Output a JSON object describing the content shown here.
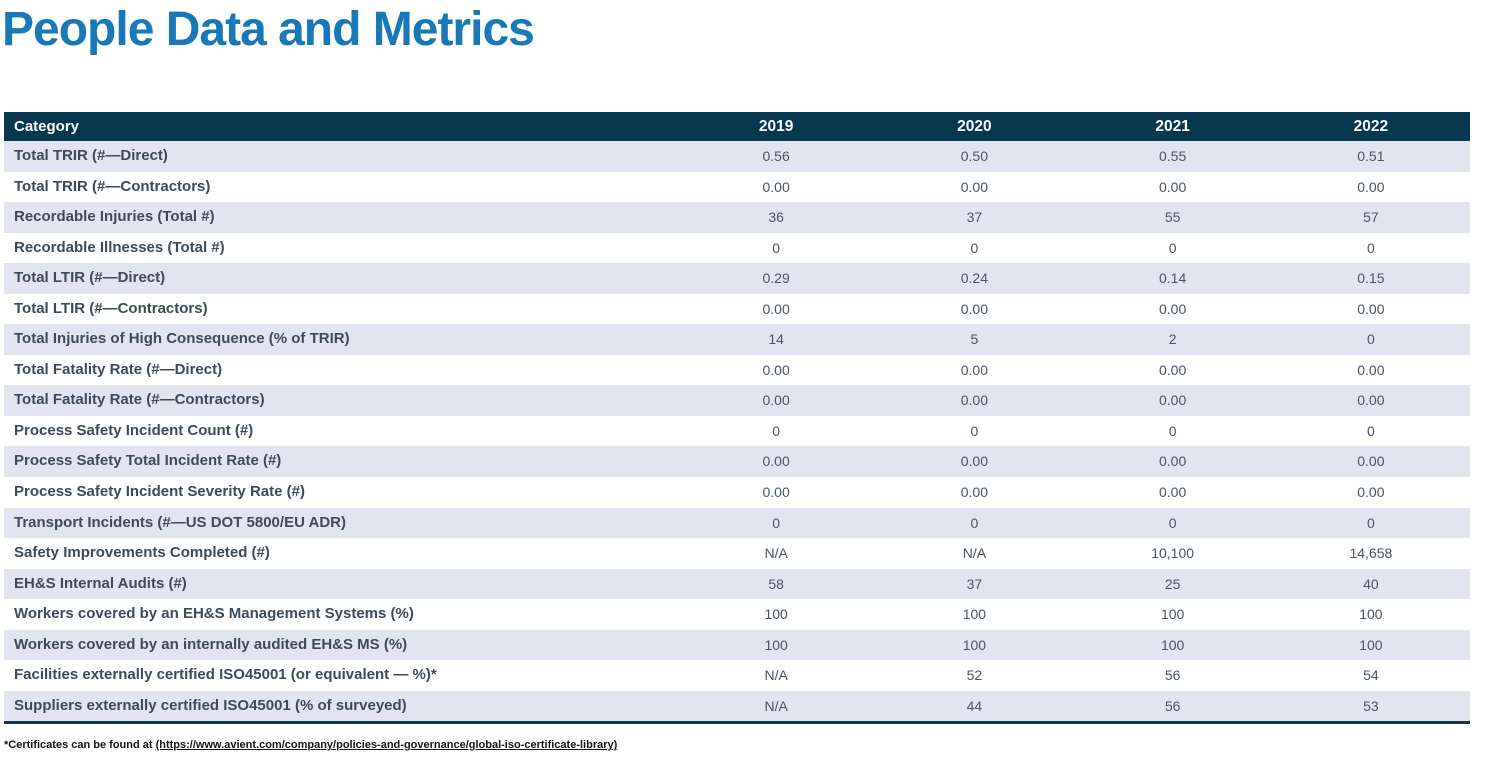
{
  "title": "People Data and Metrics",
  "table": {
    "columns": [
      "Category",
      "2019",
      "2020",
      "2021",
      "2022"
    ],
    "rows": [
      {
        "label": "Total TRIR (#—Direct)",
        "values": [
          "0.56",
          "0.50",
          "0.55",
          "0.51"
        ]
      },
      {
        "label": "Total TRIR (#—Contractors)",
        "values": [
          "0.00",
          "0.00",
          "0.00",
          "0.00"
        ]
      },
      {
        "label": "Recordable Injuries (Total #)",
        "values": [
          "36",
          "37",
          "55",
          "57"
        ]
      },
      {
        "label": "Recordable Illnesses (Total #)",
        "values": [
          "0",
          "0",
          "0",
          "0"
        ]
      },
      {
        "label": "Total LTIR (#—Direct)",
        "values": [
          "0.29",
          "0.24",
          "0.14",
          "0.15"
        ]
      },
      {
        "label": "Total LTIR (#—Contractors)",
        "values": [
          "0.00",
          "0.00",
          "0.00",
          "0.00"
        ]
      },
      {
        "label": "Total Injuries of High Consequence (% of TRIR)",
        "values": [
          "14",
          "5",
          "2",
          "0"
        ]
      },
      {
        "label": "Total Fatality Rate (#—Direct)",
        "values": [
          "0.00",
          "0.00",
          "0.00",
          "0.00"
        ]
      },
      {
        "label": "Total Fatality Rate (#—Contractors)",
        "values": [
          "0.00",
          "0.00",
          "0.00",
          "0.00"
        ]
      },
      {
        "label": "Process Safety Incident Count (#)",
        "values": [
          "0",
          "0",
          "0",
          "0"
        ]
      },
      {
        "label": "Process Safety Total Incident Rate (#)",
        "values": [
          "0.00",
          "0.00",
          "0.00",
          "0.00"
        ]
      },
      {
        "label": "Process Safety Incident Severity Rate (#)",
        "values": [
          "0.00",
          "0.00",
          "0.00",
          "0.00"
        ]
      },
      {
        "label": "Transport Incidents (#—US DOT 5800/EU ADR)",
        "values": [
          "0",
          "0",
          "0",
          "0"
        ]
      },
      {
        "label": "Safety Improvements Completed (#)",
        "values": [
          "N/A",
          "N/A",
          "10,100",
          "14,658"
        ]
      },
      {
        "label": "EH&S Internal Audits (#)",
        "values": [
          "58",
          "37",
          "25",
          "40"
        ]
      },
      {
        "label": "Workers covered by an EH&S Management Systems (%)",
        "values": [
          "100",
          "100",
          "100",
          "100"
        ]
      },
      {
        "label": "Workers covered by an internally audited EH&S MS (%)",
        "values": [
          "100",
          "100",
          "100",
          "100"
        ]
      },
      {
        "label": "Facilities externally certified ISO45001 (or equivalent — %)*",
        "values": [
          "N/A",
          "52",
          "56",
          "54"
        ]
      },
      {
        "label": "Suppliers externally certified ISO45001 (% of surveyed)",
        "values": [
          "N/A",
          "44",
          "56",
          "53"
        ]
      }
    ]
  },
  "footnote": {
    "prefix": "*Certificates can be found at ",
    "link": "(https://www.avient.com/company/policies-and-governance/global-iso-certificate-library)"
  },
  "colors": {
    "title_blue": "#1878B8",
    "header_navy": "#07374E",
    "row_stripe": "#E2E5EF",
    "row_text": "#3E4A59",
    "bottom_border": "#123649"
  }
}
